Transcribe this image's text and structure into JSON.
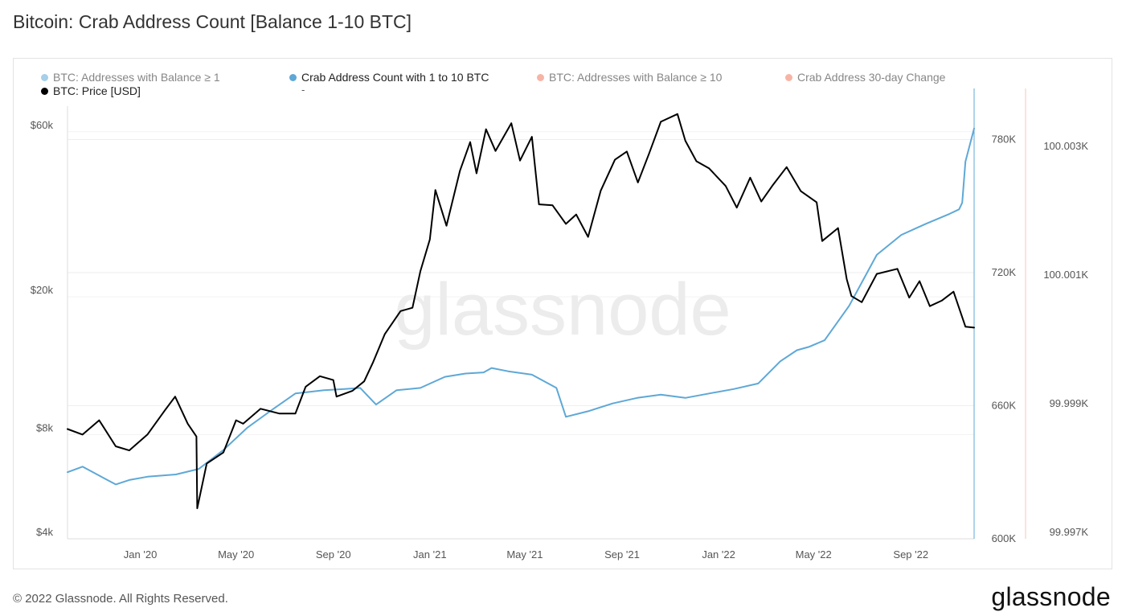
{
  "title": "Bitcoin: Crab Address Count [Balance 1-10 BTC]",
  "footer": {
    "copyright": "© 2022 Glassnode. All Rights Reserved.",
    "logo": "glassnode"
  },
  "watermark": "glassnode",
  "legend": {
    "items": [
      {
        "label": "BTC: Addresses with Balance ≥ 1",
        "color": "#5ea8d6",
        "faded": true
      },
      {
        "label": "Crab Address Count with 1 to 10 BTC",
        "color": "#5ea8d6",
        "faded": false
      },
      {
        "label": "BTC: Addresses with Balance ≥ 10",
        "color": "#f2785c",
        "faded": true
      },
      {
        "label": "Crab Address 30-day Change",
        "color": "#f2785c",
        "faded": true
      },
      {
        "label": "BTC: Price [USD]",
        "color": "#000000",
        "faded": false
      }
    ],
    "dash": "-"
  },
  "chart_data": {
    "type": "line",
    "title": "Bitcoin: Crab Address Count [Balance 1-10 BTC]",
    "x_ticks": [
      "Jan '20",
      "May '20",
      "Sep '20",
      "Jan '21",
      "May '21",
      "Sep '21",
      "Jan '22",
      "May '22",
      "Sep '22"
    ],
    "axes": {
      "price": {
        "side": "left",
        "scale": "log",
        "ticks": [
          "$4k",
          "$8k",
          "$20k",
          "$60k"
        ],
        "tick_values": [
          4000,
          8000,
          20000,
          60000
        ],
        "range": [
          4000,
          80000
        ]
      },
      "count": {
        "side": "right",
        "scale": "linear",
        "ticks": [
          "600K",
          "660K",
          "720K",
          "780K"
        ],
        "tick_values": [
          600000,
          660000,
          720000,
          780000
        ],
        "range": [
          600000,
          803000
        ]
      },
      "change": {
        "side": "right-outer",
        "scale": "linear",
        "ticks": [
          "99.997K",
          "99.999K",
          "100.001K",
          "100.003K"
        ],
        "tick_values": [
          99997,
          99999,
          100001,
          100003
        ]
      }
    },
    "grid": true,
    "series": [
      {
        "name": "BTC: Price [USD]",
        "axis": "price",
        "color": "#000000",
        "x": [
          "2019-10-01",
          "2019-10-20",
          "2019-11-10",
          "2019-12-01",
          "2019-12-18",
          "2020-01-10",
          "2020-02-01",
          "2020-02-14",
          "2020-03-01",
          "2020-03-12",
          "2020-03-13",
          "2020-03-25",
          "2020-04-15",
          "2020-05-01",
          "2020-05-10",
          "2020-06-01",
          "2020-06-25",
          "2020-07-15",
          "2020-07-28",
          "2020-08-15",
          "2020-09-01",
          "2020-09-05",
          "2020-09-25",
          "2020-10-10",
          "2020-10-21",
          "2020-11-05",
          "2020-11-25",
          "2020-12-10",
          "2020-12-20",
          "2021-01-01",
          "2021-01-08",
          "2021-01-22",
          "2021-02-08",
          "2021-02-21",
          "2021-03-01",
          "2021-03-13",
          "2021-03-25",
          "2021-04-14",
          "2021-04-25",
          "2021-05-10",
          "2021-05-19",
          "2021-06-05",
          "2021-06-22",
          "2021-07-05",
          "2021-07-20",
          "2021-08-05",
          "2021-08-23",
          "2021-09-07",
          "2021-09-21",
          "2021-10-05",
          "2021-10-20",
          "2021-11-10",
          "2021-11-20",
          "2021-12-04",
          "2021-12-20",
          "2022-01-10",
          "2022-01-24",
          "2022-02-10",
          "2022-02-24",
          "2022-03-10",
          "2022-03-28",
          "2022-04-15",
          "2022-05-05",
          "2022-05-12",
          "2022-06-01",
          "2022-06-12",
          "2022-06-18",
          "2022-07-01",
          "2022-07-20",
          "2022-08-15",
          "2022-08-30",
          "2022-09-12",
          "2022-09-25",
          "2022-10-10",
          "2022-10-25",
          "2022-11-09",
          "2022-11-20"
        ],
        "values": [
          8300,
          8000,
          8800,
          7400,
          7200,
          8000,
          9400,
          10300,
          8600,
          7900,
          4900,
          6600,
          7100,
          8800,
          8600,
          9500,
          9200,
          9200,
          11000,
          11800,
          11500,
          10300,
          10700,
          11400,
          12900,
          15600,
          18200,
          18600,
          23700,
          29300,
          40700,
          32100,
          46200,
          56000,
          45500,
          61000,
          52800,
          63500,
          49500,
          58000,
          37000,
          36800,
          32500,
          34600,
          29800,
          40500,
          49800,
          52600,
          42800,
          51800,
          64100,
          67500,
          56500,
          49300,
          47000,
          41800,
          36200,
          44200,
          37700,
          41900,
          47400,
          40400,
          37500,
          29000,
          31600,
          22500,
          20100,
          19300,
          23300,
          24100,
          19900,
          22200,
          18800,
          19500,
          20700,
          16400,
          16300
        ]
      },
      {
        "name": "Crab Address Count with 1 to 10 BTC",
        "axis": "count",
        "color": "#5ea8d6",
        "x": [
          "2019-10-01",
          "2019-10-20",
          "2019-11-10",
          "2019-12-01",
          "2019-12-18",
          "2020-01-10",
          "2020-02-15",
          "2020-03-15",
          "2020-04-15",
          "2020-05-15",
          "2020-06-15",
          "2020-07-15",
          "2020-08-20",
          "2020-09-15",
          "2020-10-05",
          "2020-10-25",
          "2020-11-20",
          "2020-12-20",
          "2021-01-20",
          "2021-02-15",
          "2021-03-10",
          "2021-03-20",
          "2021-04-10",
          "2021-05-10",
          "2021-06-10",
          "2021-06-22",
          "2021-07-20",
          "2021-08-20",
          "2021-09-20",
          "2021-10-20",
          "2021-11-20",
          "2021-12-20",
          "2022-01-20",
          "2022-02-20",
          "2022-03-20",
          "2022-04-10",
          "2022-04-25",
          "2022-05-15",
          "2022-06-15",
          "2022-07-20",
          "2022-08-20",
          "2022-09-20",
          "2022-10-20",
          "2022-11-01",
          "2022-11-05",
          "2022-11-09",
          "2022-11-20"
        ],
        "values": [
          630000,
          632500,
          628500,
          624500,
          626500,
          628000,
          629000,
          631500,
          640000,
          650000,
          658000,
          665500,
          667000,
          667500,
          668000,
          660500,
          667000,
          668000,
          673000,
          674500,
          675000,
          677000,
          675500,
          674000,
          668000,
          655000,
          657500,
          661000,
          663500,
          665000,
          663500,
          665500,
          667500,
          670000,
          680000,
          685000,
          686500,
          689500,
          705000,
          728000,
          737000,
          742000,
          746500,
          748500,
          751500,
          770000,
          785000
        ]
      }
    ]
  }
}
